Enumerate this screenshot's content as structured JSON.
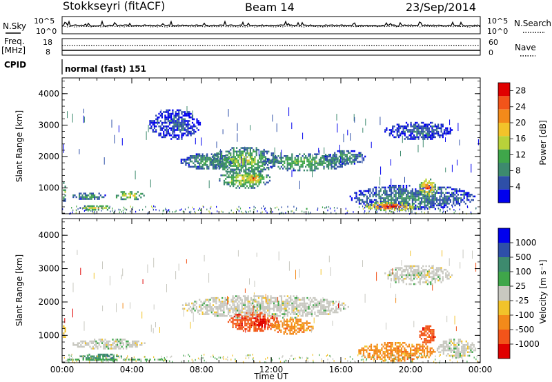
{
  "header": {
    "station": "Stokkseyri (fitACF)",
    "beam": "Beam 14",
    "date": "23/Sep/2014"
  },
  "strip": {
    "nsky_label": "N.Sky",
    "nsky_ticks": [
      "10^5",
      "10^0"
    ],
    "nsearch_label": "N.Search",
    "nsearch_ticks": [
      "10^5",
      "10^0"
    ],
    "freq_label": "Freq.",
    "freq_unit": "[MHz]",
    "freq_ticks": [
      "18",
      "8"
    ],
    "nave_label": "Nave",
    "nave_ticks": [
      "60",
      "0"
    ],
    "cpid_label": "CPID",
    "cpid_value": "normal (fast) 151"
  },
  "colors": {
    "power_scale": [
      "#0000ee",
      "#2e4fa8",
      "#3d8a6e",
      "#3fa64a",
      "#b8d23a",
      "#f2c32a",
      "#f38a1a",
      "#f2541a",
      "#e00000"
    ],
    "velocity_scale": [
      "#e00000",
      "#f2541a",
      "#f38a1a",
      "#f2c32a",
      "#c8c8c0",
      "#3fa64a",
      "#3d8a6e",
      "#2e4fa8",
      "#0000ee"
    ],
    "velocity_gray": "#c8c8c0"
  },
  "chart_data": [
    {
      "type": "heatmap",
      "panel": "power",
      "ylabel": "Slant Range [km]",
      "yticks": [
        "1000",
        "2000",
        "3000",
        "4000"
      ],
      "ylim": [
        180,
        4500
      ],
      "xlim": [
        0,
        24
      ],
      "xticks_hours": [
        0,
        4,
        8,
        12,
        16,
        20,
        24
      ],
      "colorbar": {
        "label": "Power [dB]",
        "ticks": [
          "4",
          "8",
          "12",
          "16",
          "20",
          "24",
          "28"
        ],
        "range": [
          0,
          30
        ]
      },
      "regions": [
        {
          "t": [
            0.05,
            0.3
          ],
          "r": [
            500,
            1300
          ],
          "level": 14
        },
        {
          "t": [
            0.6,
            2.6
          ],
          "r": [
            600,
            850
          ],
          "level": 10
        },
        {
          "t": [
            1.0,
            3.0
          ],
          "r": [
            250,
            450
          ],
          "level": 18
        },
        {
          "t": [
            3.0,
            4.8
          ],
          "r": [
            600,
            900
          ],
          "level": 18
        },
        {
          "t": [
            6.8,
            10.0
          ],
          "r": [
            1550,
            2100
          ],
          "level": 10
        },
        {
          "t": [
            8.5,
            12.5
          ],
          "r": [
            1400,
            2300
          ],
          "level": 14
        },
        {
          "t": [
            9.0,
            12.0
          ],
          "r": [
            950,
            1600
          ],
          "level": 16
        },
        {
          "t": [
            10.5,
            11.5
          ],
          "r": [
            1150,
            1450
          ],
          "level": 24
        },
        {
          "t": [
            11.5,
            16.5
          ],
          "r": [
            1500,
            2100
          ],
          "level": 12
        },
        {
          "t": [
            15.0,
            17.5
          ],
          "r": [
            1700,
            2200
          ],
          "level": 10
        },
        {
          "t": [
            16.5,
            23.8
          ],
          "r": [
            300,
            1100
          ],
          "level": 8
        },
        {
          "t": [
            17.3,
            20.5
          ],
          "r": [
            250,
            550
          ],
          "level": 26
        },
        {
          "t": [
            20.5,
            21.5
          ],
          "r": [
            700,
            1300
          ],
          "level": 24
        },
        {
          "t": [
            18.5,
            22.5
          ],
          "r": [
            2500,
            3100
          ],
          "level": 6
        },
        {
          "t": [
            5.0,
            8.0
          ],
          "r": [
            2500,
            3500
          ],
          "level": 5
        }
      ]
    },
    {
      "type": "heatmap",
      "panel": "velocity",
      "ylabel": "Slant Range [km]",
      "xlabel": "Time UT",
      "yticks": [
        "1000",
        "2000",
        "3000",
        "4000"
      ],
      "ylim": [
        180,
        4500
      ],
      "xlim": [
        0,
        24
      ],
      "xticks": [
        "00:00",
        "04:00",
        "08:00",
        "12:00",
        "16:00",
        "20:00",
        "00:00"
      ],
      "colorbar": {
        "label": "Velocity [m s⁻¹]",
        "ticks": [
          "1000",
          "500",
          "100",
          "25",
          "-25",
          "-100",
          "-500",
          "-1000"
        ]
      },
      "regions": [
        {
          "t": [
            0.05,
            0.3
          ],
          "r": [
            900,
            1300
          ],
          "level": 3
        },
        {
          "t": [
            0.6,
            4.8
          ],
          "r": [
            550,
            900
          ],
          "level": 4
        },
        {
          "t": [
            1.0,
            3.5
          ],
          "r": [
            200,
            450
          ],
          "level": 6
        },
        {
          "t": [
            6.8,
            16.5
          ],
          "r": [
            1500,
            2200
          ],
          "level": 4
        },
        {
          "t": [
            9.5,
            12.5
          ],
          "r": [
            1100,
            1700
          ],
          "level": 1
        },
        {
          "t": [
            11.0,
            12.0
          ],
          "r": [
            1200,
            1500
          ],
          "level": 0
        },
        {
          "t": [
            12.0,
            14.5
          ],
          "r": [
            1000,
            1500
          ],
          "level": 2
        },
        {
          "t": [
            17.0,
            21.5
          ],
          "r": [
            200,
            800
          ],
          "level": 2
        },
        {
          "t": [
            20.5,
            21.5
          ],
          "r": [
            700,
            1300
          ],
          "level": 1
        },
        {
          "t": [
            21.5,
            23.8
          ],
          "r": [
            300,
            900
          ],
          "level": 4
        },
        {
          "t": [
            18.5,
            22.5
          ],
          "r": [
            2500,
            3100
          ],
          "level": 4
        },
        {
          "t": [
            0.3,
            6.0
          ],
          "r": [
            200,
            300
          ],
          "level": 5
        }
      ]
    }
  ]
}
